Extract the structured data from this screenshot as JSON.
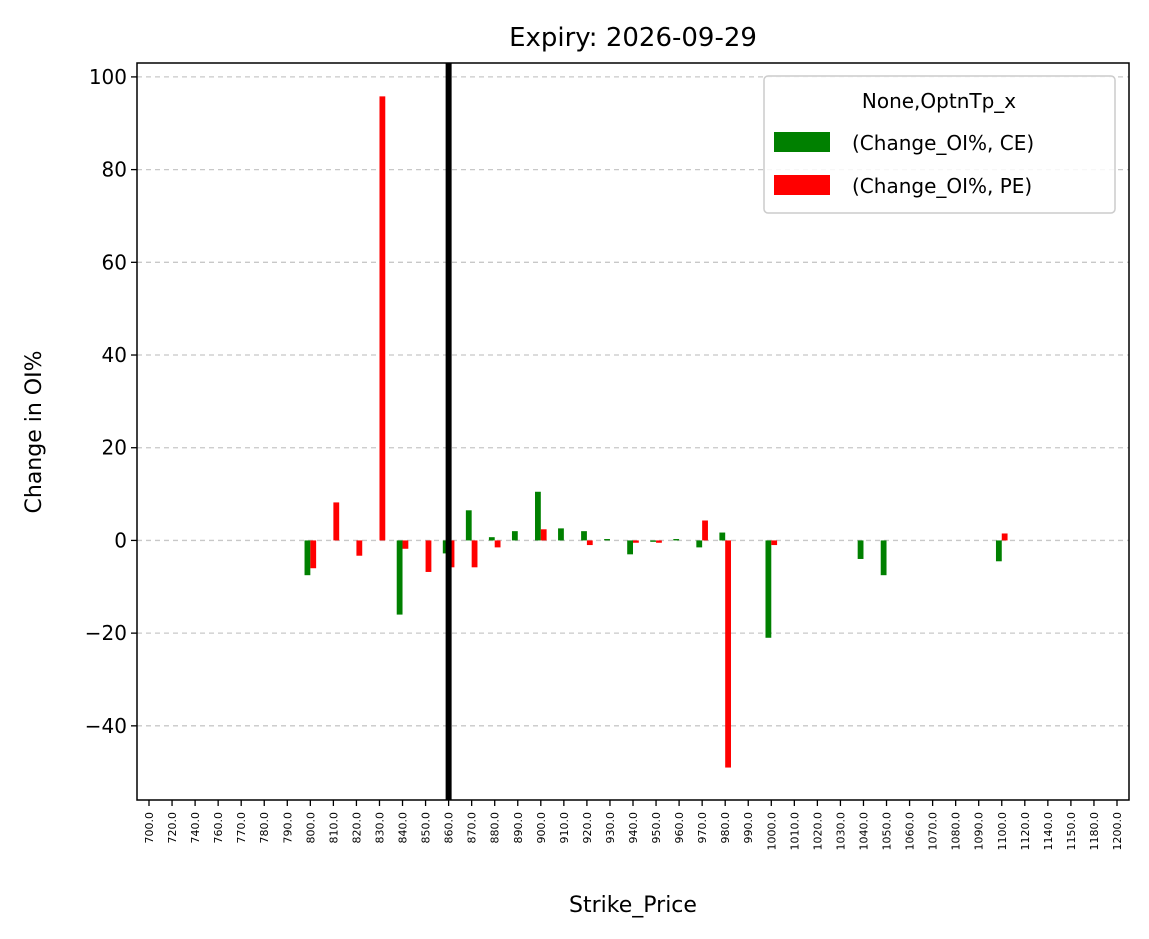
{
  "chart_data": {
    "type": "bar",
    "title": "Expiry: 2026-09-29",
    "xlabel": "Strike_Price",
    "ylabel": "Change in OI%",
    "ylim": [
      -56,
      103
    ],
    "yticks": [
      -40,
      -20,
      0,
      20,
      40,
      60,
      80,
      100
    ],
    "ytick_labels": [
      "−40",
      "−20",
      "0",
      "20",
      "40",
      "60",
      "80",
      "100"
    ],
    "grid": "y-dashed",
    "legend_title": "None,OptnTp_x",
    "legend_position": "top-right",
    "reference_line": {
      "x_category": "860.0",
      "color": "#000000"
    },
    "categories": [
      "700.0",
      "720.0",
      "740.0",
      "760.0",
      "770.0",
      "780.0",
      "790.0",
      "800.0",
      "810.0",
      "820.0",
      "830.0",
      "840.0",
      "850.0",
      "860.0",
      "870.0",
      "880.0",
      "890.0",
      "900.0",
      "910.0",
      "920.0",
      "930.0",
      "940.0",
      "950.0",
      "960.0",
      "970.0",
      "980.0",
      "990.0",
      "1000.0",
      "1010.0",
      "1020.0",
      "1030.0",
      "1040.0",
      "1050.0",
      "1060.0",
      "1070.0",
      "1080.0",
      "1090.0",
      "1100.0",
      "1120.0",
      "1140.0",
      "1150.0",
      "1180.0",
      "1200.0"
    ],
    "series": [
      {
        "name": "(Change_OI%, CE)",
        "color": "#008000",
        "values": [
          0,
          0,
          0,
          0,
          0,
          0,
          0,
          -7.5,
          0,
          0,
          0,
          -16,
          0,
          -2.8,
          6.5,
          0.7,
          2,
          10.5,
          2.6,
          2,
          0.3,
          -3,
          -0.3,
          0.3,
          -1.5,
          1.7,
          0,
          -21,
          0,
          0,
          0,
          -4,
          -7.5,
          0,
          0,
          0,
          0,
          -4.5,
          0,
          0,
          0,
          0,
          0
        ]
      },
      {
        "name": "(Change_OI%, PE)",
        "color": "#ff0000",
        "values": [
          0,
          0,
          0,
          0,
          0,
          0,
          0,
          -6,
          8.2,
          -3.3,
          95.8,
          -1.8,
          -6.8,
          -5.8,
          -5.8,
          -1.5,
          0,
          2.4,
          0,
          -1,
          0,
          -0.5,
          -0.5,
          0,
          4.3,
          -49,
          0,
          -1,
          0,
          0,
          0,
          0,
          0,
          0,
          0,
          0,
          0,
          1.5,
          0,
          0,
          0,
          0,
          0
        ]
      }
    ]
  }
}
